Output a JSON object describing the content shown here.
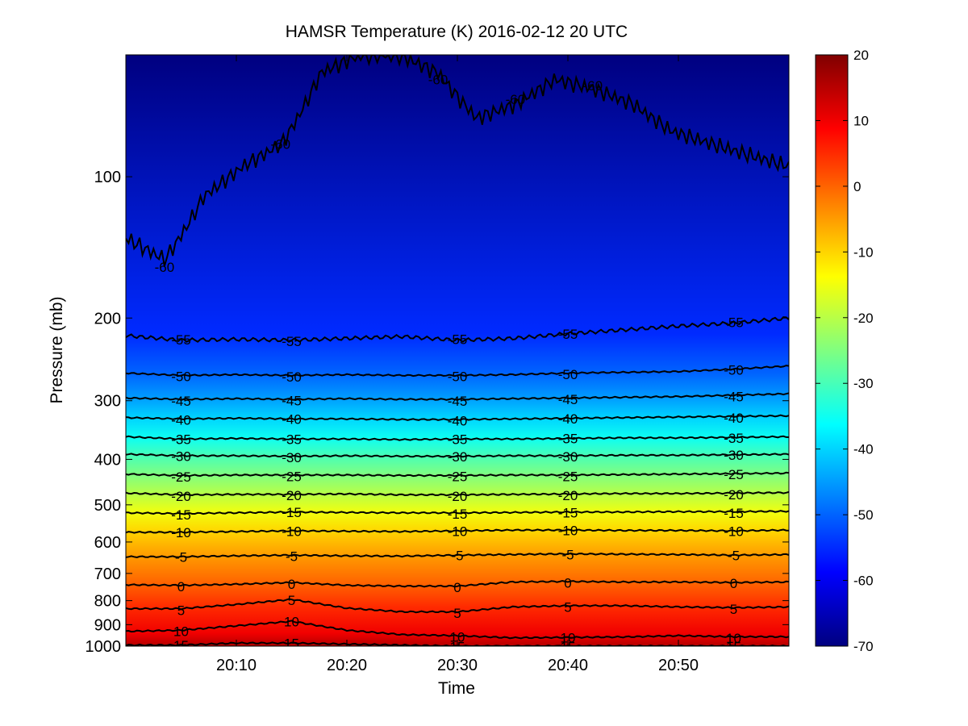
{
  "chart_data": {
    "type": "heatmap",
    "title": "HAMSR  Temperature (K) 2016-02-12 20 UTC",
    "xlabel": "Time",
    "ylabel": "Pressure (mb)",
    "x_ticks": [
      "20:10",
      "20:20",
      "20:30",
      "20:40",
      "20:50"
    ],
    "x_tick_minutes": [
      10,
      20,
      30,
      40,
      50
    ],
    "xlim_minutes": [
      0,
      60
    ],
    "y_scale": "log",
    "ylim": [
      1000,
      55
    ],
    "y_ticks": [
      100,
      200,
      300,
      400,
      500,
      600,
      700,
      800,
      900,
      1000
    ],
    "colormap": "jet",
    "colorbar": {
      "ticks": [
        20,
        10,
        0,
        -10,
        -20,
        -30,
        -40,
        -50,
        -60,
        -70
      ],
      "range": [
        -70,
        20
      ]
    },
    "contours": [
      {
        "level": -60,
        "pressure": [
          135,
          150,
          110,
          95,
          85,
          60,
          55,
          55,
          60,
          75,
          70,
          62,
          65,
          70,
          80,
          85,
          90,
          95
        ]
      },
      {
        "level": -55,
        "pressure": [
          218,
          223,
          222,
          223,
          221,
          219,
          223,
          221,
          216,
          212,
          208,
          205,
          200
        ]
      },
      {
        "level": -50,
        "pressure": [
          262,
          265,
          264,
          265,
          264,
          265,
          265,
          264,
          262,
          261,
          260,
          257,
          253
        ]
      },
      {
        "level": -45,
        "pressure": [
          296,
          298,
          297,
          298,
          297,
          298,
          298,
          297,
          296,
          295,
          294,
          292,
          290
        ]
      },
      {
        "level": -40,
        "pressure": [
          326,
          328,
          327,
          328,
          328,
          329,
          329,
          328,
          327,
          326,
          325,
          324,
          323
        ]
      },
      {
        "level": -35,
        "pressure": [
          358,
          362,
          361,
          362,
          362,
          363,
          362,
          362,
          361,
          360,
          360,
          359,
          358
        ]
      },
      {
        "level": -30,
        "pressure": [
          390,
          393,
          393,
          394,
          393,
          394,
          394,
          393,
          393,
          392,
          392,
          391,
          390
        ]
      },
      {
        "level": -25,
        "pressure": [
          430,
          433,
          432,
          432,
          432,
          433,
          433,
          432,
          432,
          431,
          430,
          429,
          428
        ]
      },
      {
        "level": -20,
        "pressure": [
          472,
          476,
          475,
          475,
          474,
          476,
          476,
          475,
          474,
          473,
          473,
          472,
          471
        ]
      },
      {
        "level": -15,
        "pressure": [
          520,
          522,
          520,
          518,
          519,
          520,
          520,
          519,
          518,
          518,
          517,
          517,
          516
        ]
      },
      {
        "level": -10,
        "pressure": [
          572,
          572,
          570,
          568,
          569,
          570,
          568,
          566,
          566,
          567,
          567,
          568,
          566
        ]
      },
      {
        "level": -5,
        "pressure": [
          645,
          645,
          642,
          640,
          642,
          643,
          640,
          638,
          636,
          637,
          638,
          640,
          638
        ]
      },
      {
        "level": 0,
        "pressure": [
          740,
          742,
          738,
          732,
          742,
          745,
          745,
          730,
          728,
          730,
          730,
          732,
          730
        ]
      },
      {
        "level": 5,
        "pressure": [
          832,
          832,
          815,
          795,
          830,
          845,
          845,
          825,
          820,
          820,
          825,
          828,
          825
        ]
      },
      {
        "level": 10,
        "pressure": [
          930,
          925,
          905,
          885,
          925,
          945,
          950,
          960,
          958,
          956,
          950,
          955,
          955
        ]
      },
      {
        "level": 15,
        "pressure": [
          995,
          995,
          985,
          985,
          990,
          995,
          1000,
          1000,
          1000,
          1000,
          1000,
          1000,
          1000
        ]
      }
    ]
  }
}
